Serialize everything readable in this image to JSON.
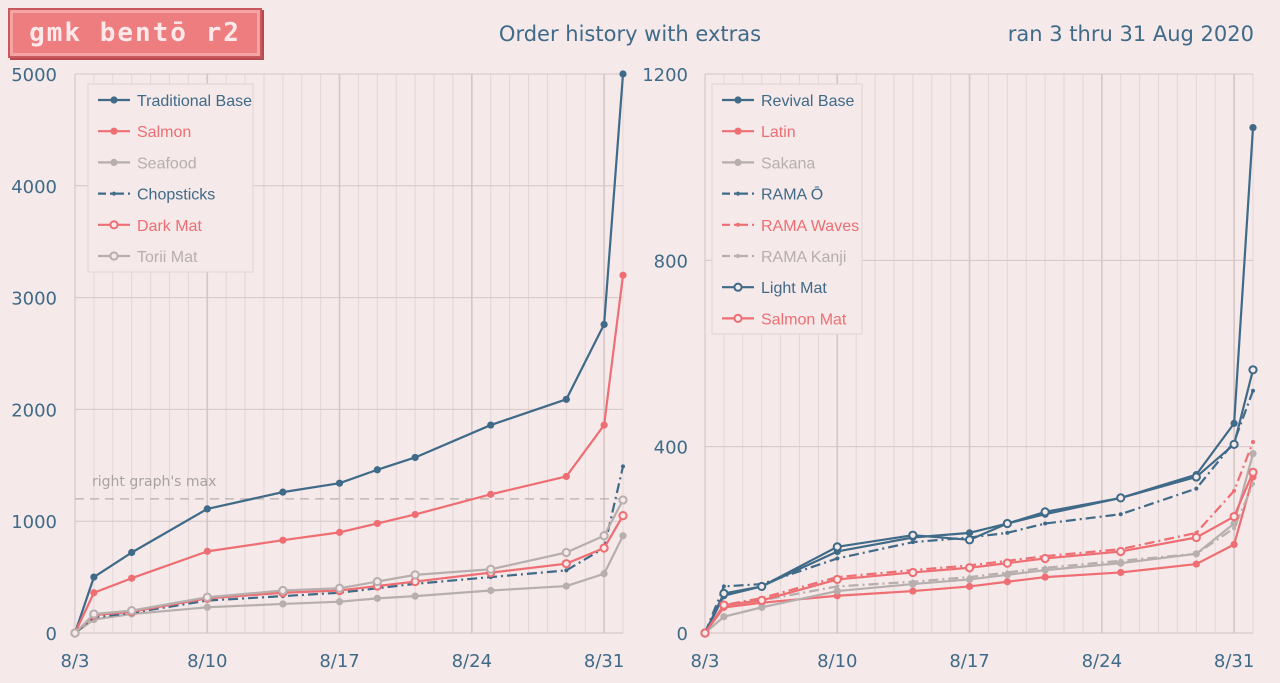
{
  "header": {
    "logo_text": "gmk bentō r2",
    "title": "Order history with extras",
    "date_range": "ran 3 thru 31 Aug 2020"
  },
  "colors": {
    "blue": "#3f6a88",
    "salmon": "#ee6e73",
    "gray": "#b7aeae",
    "background": "#f5e9e9",
    "grid": "#e3d6d6",
    "grid_week": "#d6c6c6"
  },
  "chart_data": [
    {
      "type": "line",
      "x_ticks": [
        "8/3",
        "8/10",
        "8/17",
        "8/24",
        "8/31"
      ],
      "x_range": [
        "8/3",
        "9/1"
      ],
      "y_ticks": [
        "0",
        "1000",
        "2000",
        "3000",
        "4000",
        "5000"
      ],
      "ylim": [
        0,
        5000
      ],
      "grid": true,
      "legend_position": "top-left",
      "annotation": {
        "text": "right graph's max",
        "y": 1200
      },
      "series": [
        {
          "name": "Traditional Base",
          "color": "blue",
          "style": "solid-dot",
          "points": [
            [
              "8/3",
              0
            ],
            [
              "8/4",
              500
            ],
            [
              "8/6",
              720
            ],
            [
              "8/10",
              1110
            ],
            [
              "8/14",
              1260
            ],
            [
              "8/17",
              1340
            ],
            [
              "8/19",
              1460
            ],
            [
              "8/21",
              1570
            ],
            [
              "8/25",
              1860
            ],
            [
              "8/29",
              2090
            ],
            [
              "8/31",
              2760
            ],
            [
              "9/1",
              5000
            ]
          ]
        },
        {
          "name": "Salmon",
          "color": "salmon",
          "style": "solid-dot",
          "points": [
            [
              "8/3",
              0
            ],
            [
              "8/4",
              360
            ],
            [
              "8/6",
              490
            ],
            [
              "8/10",
              730
            ],
            [
              "8/14",
              830
            ],
            [
              "8/17",
              900
            ],
            [
              "8/19",
              980
            ],
            [
              "8/21",
              1060
            ],
            [
              "8/25",
              1240
            ],
            [
              "8/29",
              1400
            ],
            [
              "8/31",
              1860
            ],
            [
              "9/1",
              3200
            ]
          ]
        },
        {
          "name": "Seafood",
          "color": "gray",
          "style": "solid-dot",
          "points": [
            [
              "8/3",
              0
            ],
            [
              "8/4",
              120
            ],
            [
              "8/6",
              170
            ],
            [
              "8/10",
              230
            ],
            [
              "8/14",
              260
            ],
            [
              "8/17",
              280
            ],
            [
              "8/19",
              310
            ],
            [
              "8/21",
              330
            ],
            [
              "8/25",
              380
            ],
            [
              "8/29",
              420
            ],
            [
              "8/31",
              530
            ],
            [
              "9/1",
              870
            ]
          ]
        },
        {
          "name": "Chopsticks",
          "color": "blue",
          "style": "dashdot",
          "points": [
            [
              "8/3",
              0
            ],
            [
              "8/4",
              140
            ],
            [
              "8/6",
              180
            ],
            [
              "8/10",
              290
            ],
            [
              "8/14",
              330
            ],
            [
              "8/17",
              360
            ],
            [
              "8/19",
              400
            ],
            [
              "8/21",
              440
            ],
            [
              "8/25",
              500
            ],
            [
              "8/29",
              560
            ],
            [
              "8/31",
              760
            ],
            [
              "9/1",
              1490
            ]
          ]
        },
        {
          "name": "Dark Mat",
          "color": "salmon",
          "style": "solid-ring",
          "points": [
            [
              "8/3",
              0
            ],
            [
              "8/4",
              160
            ],
            [
              "8/6",
              190
            ],
            [
              "8/10",
              310
            ],
            [
              "8/14",
              360
            ],
            [
              "8/17",
              380
            ],
            [
              "8/19",
              420
            ],
            [
              "8/21",
              460
            ],
            [
              "8/25",
              540
            ],
            [
              "8/29",
              620
            ],
            [
              "8/31",
              760
            ],
            [
              "9/1",
              1050
            ]
          ]
        },
        {
          "name": "Torii Mat",
          "color": "gray",
          "style": "solid-ring",
          "points": [
            [
              "8/3",
              0
            ],
            [
              "8/4",
              170
            ],
            [
              "8/6",
              200
            ],
            [
              "8/10",
              320
            ],
            [
              "8/14",
              380
            ],
            [
              "8/17",
              400
            ],
            [
              "8/19",
              460
            ],
            [
              "8/21",
              520
            ],
            [
              "8/25",
              570
            ],
            [
              "8/29",
              720
            ],
            [
              "8/31",
              870
            ],
            [
              "9/1",
              1190
            ]
          ]
        }
      ]
    },
    {
      "type": "line",
      "x_ticks": [
        "8/3",
        "8/10",
        "8/17",
        "8/24",
        "8/31"
      ],
      "x_range": [
        "8/3",
        "9/1"
      ],
      "y_ticks": [
        "0",
        "400",
        "800",
        "1200"
      ],
      "ylim": [
        0,
        1200
      ],
      "grid": true,
      "legend_position": "top-left",
      "series": [
        {
          "name": "Revival Base",
          "color": "blue",
          "style": "solid-dot",
          "points": [
            [
              "8/3",
              0
            ],
            [
              "8/4",
              80
            ],
            [
              "8/6",
              100
            ],
            [
              "8/10",
              175
            ],
            [
              "8/14",
              205
            ],
            [
              "8/17",
              215
            ],
            [
              "8/19",
              235
            ],
            [
              "8/21",
              255
            ],
            [
              "8/25",
              290
            ],
            [
              "8/29",
              340
            ],
            [
              "8/31",
              450
            ],
            [
              "9/1",
              1085
            ]
          ]
        },
        {
          "name": "Latin",
          "color": "salmon",
          "style": "solid-dot",
          "points": [
            [
              "8/3",
              0
            ],
            [
              "8/4",
              55
            ],
            [
              "8/6",
              65
            ],
            [
              "8/10",
              80
            ],
            [
              "8/14",
              90
            ],
            [
              "8/17",
              100
            ],
            [
              "8/19",
              110
            ],
            [
              "8/21",
              120
            ],
            [
              "8/25",
              130
            ],
            [
              "8/29",
              148
            ],
            [
              "8/31",
              190
            ],
            [
              "9/1",
              335
            ]
          ]
        },
        {
          "name": "Sakana",
          "color": "gray",
          "style": "solid-dot",
          "points": [
            [
              "8/3",
              0
            ],
            [
              "8/4",
              35
            ],
            [
              "8/6",
              55
            ],
            [
              "8/10",
              90
            ],
            [
              "8/14",
              105
            ],
            [
              "8/17",
              115
            ],
            [
              "8/19",
              125
            ],
            [
              "8/21",
              135
            ],
            [
              "8/25",
              150
            ],
            [
              "8/29",
              170
            ],
            [
              "8/31",
              235
            ],
            [
              "9/1",
              385
            ]
          ]
        },
        {
          "name": "RAMA Ō",
          "color": "blue",
          "style": "dashdot",
          "points": [
            [
              "8/3",
              0
            ],
            [
              "8/4",
              100
            ],
            [
              "8/6",
              105
            ],
            [
              "8/10",
              160
            ],
            [
              "8/14",
              195
            ],
            [
              "8/17",
              205
            ],
            [
              "8/19",
              215
            ],
            [
              "8/21",
              235
            ],
            [
              "8/25",
              255
            ],
            [
              "8/29",
              310
            ],
            [
              "8/31",
              410
            ],
            [
              "9/1",
              520
            ]
          ]
        },
        {
          "name": "RAMA Waves",
          "color": "salmon",
          "style": "dashdot",
          "points": [
            [
              "8/3",
              0
            ],
            [
              "8/4",
              60
            ],
            [
              "8/6",
              75
            ],
            [
              "8/10",
              120
            ],
            [
              "8/14",
              135
            ],
            [
              "8/17",
              145
            ],
            [
              "8/19",
              155
            ],
            [
              "8/21",
              165
            ],
            [
              "8/25",
              180
            ],
            [
              "8/29",
              215
            ],
            [
              "8/31",
              305
            ],
            [
              "9/1",
              410
            ]
          ]
        },
        {
          "name": "RAMA Kanji",
          "color": "gray",
          "style": "dashdot",
          "points": [
            [
              "8/3",
              0
            ],
            [
              "8/4",
              60
            ],
            [
              "8/6",
              70
            ],
            [
              "8/10",
              100
            ],
            [
              "8/14",
              110
            ],
            [
              "8/17",
              120
            ],
            [
              "8/19",
              130
            ],
            [
              "8/21",
              140
            ],
            [
              "8/25",
              155
            ],
            [
              "8/29",
              170
            ],
            [
              "8/31",
              225
            ],
            [
              "9/1",
              320
            ]
          ]
        },
        {
          "name": "Light Mat",
          "color": "blue",
          "style": "solid-ring",
          "points": [
            [
              "8/3",
              0
            ],
            [
              "8/4",
              85
            ],
            [
              "8/6",
              100
            ],
            [
              "8/10",
              185
            ],
            [
              "8/14",
              210
            ],
            [
              "8/17",
              200
            ],
            [
              "8/19",
              235
            ],
            [
              "8/21",
              260
            ],
            [
              "8/25",
              290
            ],
            [
              "8/29",
              335
            ],
            [
              "8/31",
              405
            ],
            [
              "9/1",
              565
            ]
          ]
        },
        {
          "name": "Salmon Mat",
          "color": "salmon",
          "style": "solid-ring",
          "points": [
            [
              "8/3",
              0
            ],
            [
              "8/4",
              60
            ],
            [
              "8/6",
              70
            ],
            [
              "8/10",
              115
            ],
            [
              "8/14",
              130
            ],
            [
              "8/17",
              140
            ],
            [
              "8/19",
              150
            ],
            [
              "8/21",
              160
            ],
            [
              "8/25",
              175
            ],
            [
              "8/29",
              205
            ],
            [
              "8/31",
              250
            ],
            [
              "9/1",
              345
            ]
          ]
        }
      ]
    }
  ]
}
